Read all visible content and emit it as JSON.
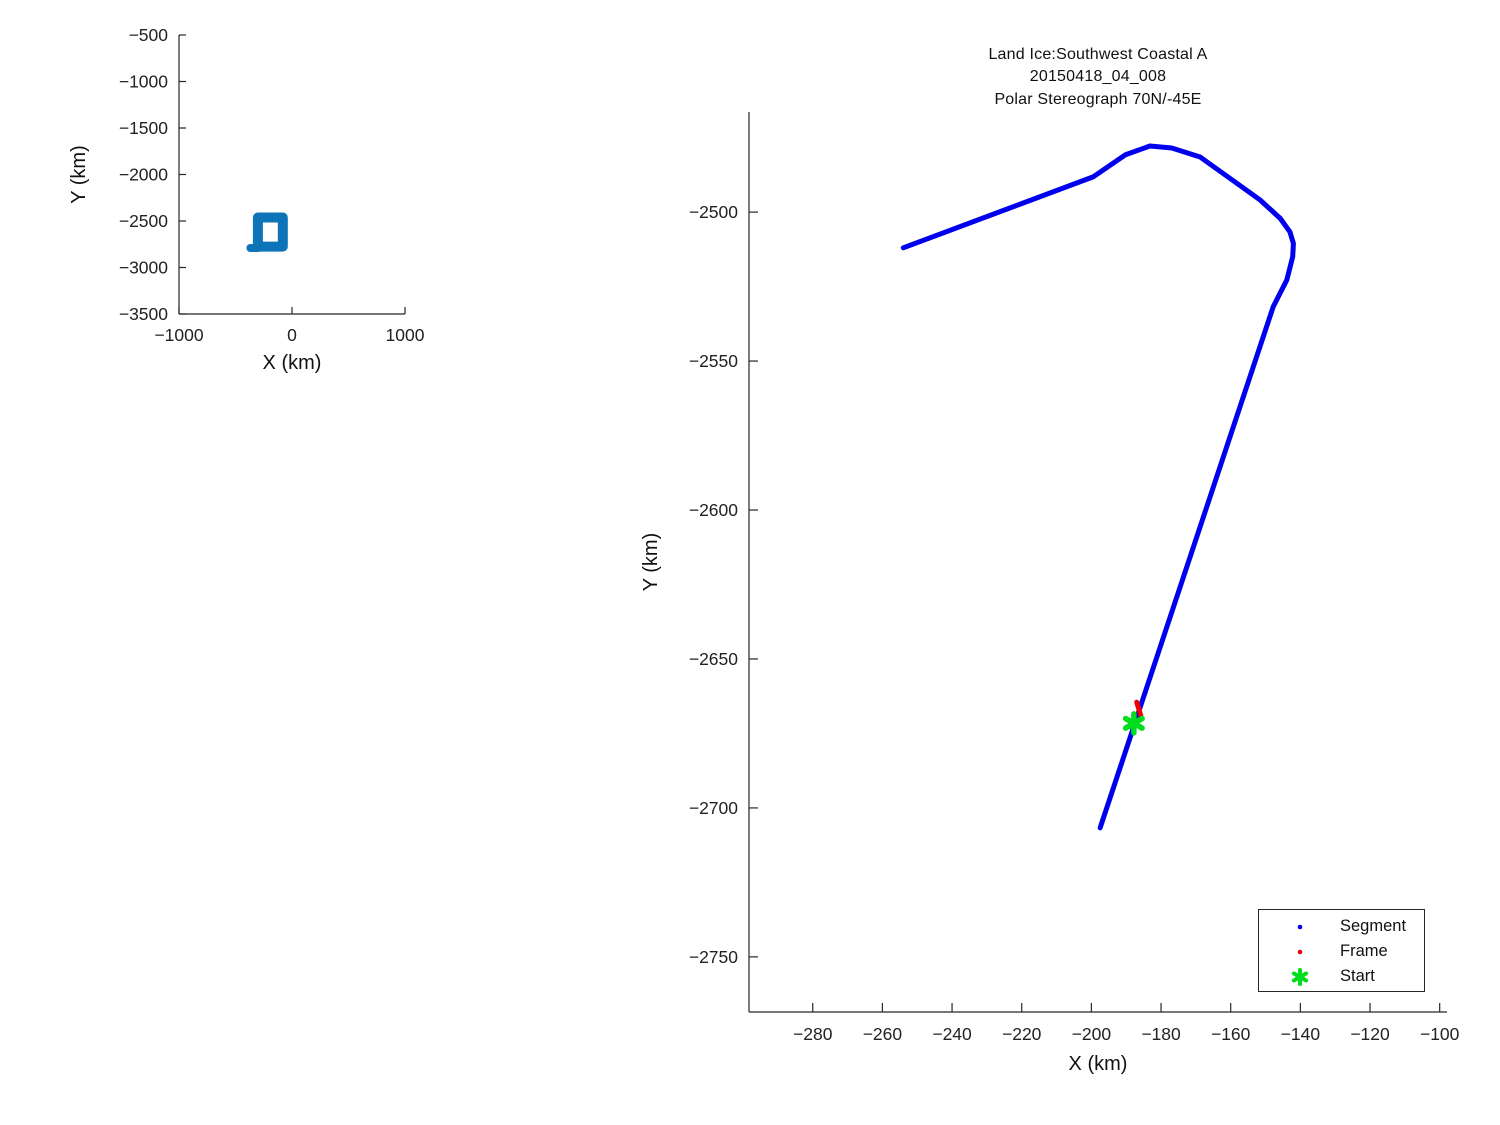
{
  "figure": {
    "background": "#ffffff",
    "text_color": "#111111",
    "axis_color": "#262626"
  },
  "chart_data": [
    {
      "id": "overview-map",
      "type": "line",
      "title": "",
      "xlabel": "X (km)",
      "ylabel": "Y (km)",
      "xlim": [
        -1000,
        1000
      ],
      "ylim": [
        -3500,
        -500
      ],
      "xticks": [
        "−1000",
        "0",
        "1000"
      ],
      "yticks": [
        "−500",
        "−1000",
        "−1500",
        "−2000",
        "−2500",
        "−3000",
        "−3500"
      ],
      "grid": false,
      "legend_position": "none",
      "series": [
        {
          "name": "coverage-box-outline",
          "kind": "rect-outline",
          "color": "#0e74b8",
          "line_width": 10,
          "x": [
            -302,
            -82
          ],
          "y": [
            -2775,
            -2462
          ]
        },
        {
          "name": "coverage-box-notch",
          "kind": "line",
          "color": "#0e74b8",
          "line_width": 8,
          "points": [
            [
              -368,
              -2790
            ],
            [
              -302,
              -2790
            ]
          ]
        }
      ]
    },
    {
      "id": "flight-track",
      "type": "line",
      "title_lines": [
        "Land Ice:Southwest Coastal A",
        "20150418_04_008",
        "Polar Stereograph 70N/-45E"
      ],
      "xlabel": "X (km)",
      "ylabel": "Y (km)",
      "xlim": [
        -298.3,
        -97.9
      ],
      "ylim": [
        -2768.5,
        -2466.4
      ],
      "xticks": [
        "−280",
        "−260",
        "−240",
        "−220",
        "−200",
        "−180",
        "−160",
        "−140",
        "−120",
        "−100"
      ],
      "yticks": [
        "−2500",
        "−2550",
        "−2600",
        "−2650",
        "−2700",
        "−2750"
      ],
      "grid": false,
      "legend_position": "bottom-right",
      "series": [
        {
          "name": "segment-track",
          "legend": "Segment",
          "kind": "line",
          "color": "#0000ee",
          "line_width": 5,
          "points": [
            [
              -254.0,
              -2512.0
            ],
            [
              -199.5,
              -2488.2
            ],
            [
              -190.3,
              -2480.8
            ],
            [
              -183.2,
              -2477.8
            ],
            [
              -176.9,
              -2478.5
            ],
            [
              -168.8,
              -2481.5
            ],
            [
              -160.2,
              -2488.7
            ],
            [
              -151.6,
              -2495.9
            ],
            [
              -145.8,
              -2502.1
            ],
            [
              -143.0,
              -2506.6
            ],
            [
              -142.0,
              -2510.5
            ],
            [
              -142.2,
              -2515.0
            ],
            [
              -143.9,
              -2522.8
            ],
            [
              -147.8,
              -2531.8
            ],
            [
              -197.5,
              -2706.7
            ]
          ]
        },
        {
          "name": "frame-track",
          "legend": "Frame",
          "kind": "line",
          "color": "#ee0000",
          "line_width": 5,
          "points": [
            [
              -187.0,
              -2664.5
            ],
            [
              -185.8,
              -2669.0
            ]
          ]
        },
        {
          "name": "start-marker",
          "legend": "Start",
          "kind": "asterisk",
          "color": "#00dd1c",
          "size": 19,
          "point": [
            -187.8,
            -2671.6
          ]
        }
      ],
      "legend": {
        "items": [
          {
            "label": "Segment",
            "marker": "dot",
            "color": "#0000ee"
          },
          {
            "label": "Frame",
            "marker": "dot",
            "color": "#ee0000"
          },
          {
            "label": "Start",
            "marker": "asterisk",
            "color": "#00dd1c"
          }
        ]
      }
    }
  ]
}
